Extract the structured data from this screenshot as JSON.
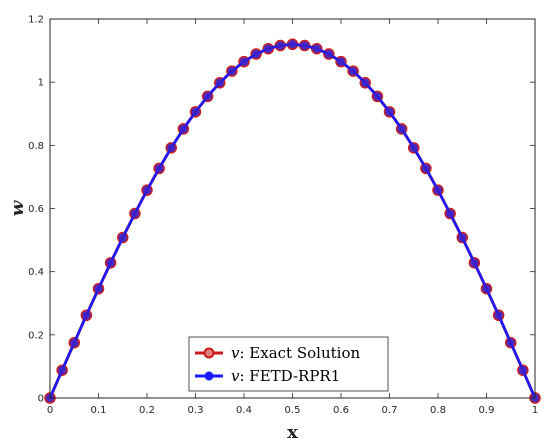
{
  "colors": {
    "exact_line": "#cc1a1a",
    "exact_marker_face": "#e08080",
    "fetd_line": "#1a1aff",
    "fetd_marker": "#3a1fc8",
    "axis": "#262626",
    "background": "#ffffff"
  },
  "chart_data": {
    "type": "line",
    "xlabel": "x",
    "ylabel": "w",
    "xlim": [
      0,
      1
    ],
    "ylim": [
      0,
      1.2
    ],
    "xticks": [
      0,
      0.1,
      0.2,
      0.3,
      0.4,
      0.5,
      0.6,
      0.7,
      0.8,
      0.9,
      1
    ],
    "xtick_labels": [
      "0",
      "0.1",
      "0.2",
      "0.3",
      "0.4",
      "0.5",
      "0.6",
      "0.7",
      "0.8",
      "0.9",
      "1"
    ],
    "yticks": [
      0,
      0.2,
      0.4,
      0.6,
      0.8,
      1,
      1.2
    ],
    "ytick_labels": [
      "0",
      "0.2",
      "0.4",
      "0.6",
      "0.8",
      "1",
      "1.2"
    ],
    "grid": false,
    "box": true,
    "legend_position": "bottom-center",
    "x": [
      0,
      0.025,
      0.05,
      0.075,
      0.1,
      0.125,
      0.15,
      0.175,
      0.2,
      0.225,
      0.25,
      0.275,
      0.3,
      0.325,
      0.35,
      0.375,
      0.4,
      0.425,
      0.45,
      0.475,
      0.5,
      0.525,
      0.55,
      0.575,
      0.6,
      0.625,
      0.65,
      0.675,
      0.7,
      0.725,
      0.75,
      0.775,
      0.8,
      0.825,
      0.85,
      0.875,
      0.9,
      0.925,
      0.95,
      0.975,
      1
    ],
    "series": [
      {
        "name_prefix": "v",
        "name": ": Exact Solution",
        "style": "line-open-circle",
        "values": [
          0,
          0.088,
          0.175,
          0.262,
          0.346,
          0.428,
          0.508,
          0.584,
          0.658,
          0.727,
          0.792,
          0.852,
          0.906,
          0.955,
          0.998,
          1.035,
          1.065,
          1.089,
          1.106,
          1.116,
          1.12,
          1.116,
          1.106,
          1.089,
          1.065,
          1.035,
          0.998,
          0.955,
          0.906,
          0.852,
          0.792,
          0.727,
          0.658,
          0.584,
          0.508,
          0.428,
          0.346,
          0.262,
          0.175,
          0.088,
          0
        ]
      },
      {
        "name_prefix": "v",
        "name": ": FETD-RPR1",
        "style": "line-filled-circle",
        "values": [
          0,
          0.088,
          0.175,
          0.262,
          0.346,
          0.428,
          0.508,
          0.584,
          0.658,
          0.727,
          0.792,
          0.852,
          0.906,
          0.955,
          0.998,
          1.035,
          1.065,
          1.089,
          1.106,
          1.116,
          1.12,
          1.116,
          1.106,
          1.089,
          1.065,
          1.035,
          0.998,
          0.955,
          0.906,
          0.852,
          0.792,
          0.727,
          0.658,
          0.584,
          0.508,
          0.428,
          0.346,
          0.262,
          0.175,
          0.088,
          0
        ]
      }
    ]
  }
}
